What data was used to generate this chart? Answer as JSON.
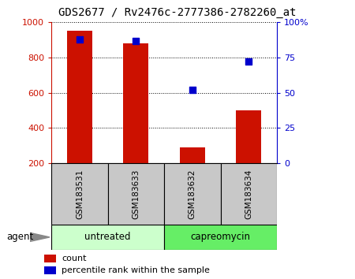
{
  "title": "GDS2677 / Rv2476c-2777386-2782260_at",
  "samples": [
    "GSM183531",
    "GSM183633",
    "GSM183632",
    "GSM183634"
  ],
  "counts": [
    950,
    880,
    290,
    500
  ],
  "percentiles": [
    88,
    87,
    52,
    72
  ],
  "groups": [
    {
      "label": "untreated",
      "indices": [
        0,
        1
      ],
      "color": "#ccffcc"
    },
    {
      "label": "capreomycin",
      "indices": [
        2,
        3
      ],
      "color": "#66ee66"
    }
  ],
  "bar_color": "#cc1100",
  "marker_color": "#0000cc",
  "left_ylim": [
    200,
    1000
  ],
  "left_yticks": [
    200,
    400,
    600,
    800,
    1000
  ],
  "right_ylim": [
    0,
    100
  ],
  "right_yticks": [
    0,
    25,
    50,
    75,
    100
  ],
  "right_yticklabels": [
    "0",
    "25",
    "50",
    "75",
    "100%"
  ],
  "bg_color": "#ffffff",
  "title_fontsize": 10,
  "tick_fontsize": 8,
  "bar_width": 0.45,
  "agent_label": "agent",
  "sample_bg_color": "#c8c8c8",
  "legend_count_label": "count",
  "legend_pct_label": "percentile rank within the sample"
}
